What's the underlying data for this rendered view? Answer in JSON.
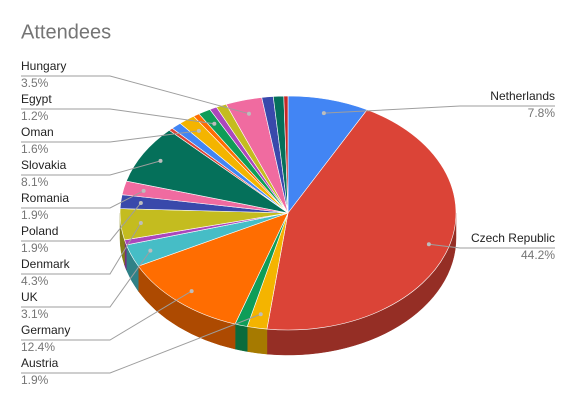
{
  "chart_data": {
    "type": "pie3d",
    "title": "Attendees",
    "categories": [
      "Netherlands",
      "Czech Republic",
      "Austria",
      null,
      "Germany",
      "UK",
      null,
      "Denmark",
      "Poland",
      "Romania",
      "Slovakia",
      null,
      null,
      "Oman",
      null,
      "Egypt",
      null,
      null,
      "Hungary",
      null,
      null,
      null
    ],
    "values": [
      7.8,
      44.2,
      1.9,
      1.2,
      12.4,
      3.1,
      0.7,
      4.3,
      1.9,
      1.9,
      8.1,
      0.4,
      1.0,
      1.6,
      0.6,
      1.2,
      0.7,
      1.0,
      3.5,
      1.1,
      1.0,
      0.4
    ],
    "value_labels": [
      "7.8%",
      "44.2%",
      "1.9%",
      null,
      "12.4%",
      "3.1%",
      null,
      "4.3%",
      "1.9%",
      "1.9%",
      "8.1%",
      null,
      null,
      "1.6%",
      null,
      "1.2%",
      null,
      null,
      "3.5%",
      null,
      null,
      null
    ],
    "colors": [
      "#4285f4",
      "#db4437",
      "#f4b400",
      "#0f9d58",
      "#ff6d01",
      "#46bdc6",
      "#ab47bc",
      "#c4bc1f",
      "#3949ab",
      "#f06ba0",
      "#05705a",
      "#db4437",
      "#4285f4",
      "#f4b400",
      "#ff6d01",
      "#0f9d58",
      "#ab47bc",
      "#c4bc1f",
      "#f06ba0",
      "#3949ab",
      "#05705a",
      "#c62828"
    ]
  }
}
